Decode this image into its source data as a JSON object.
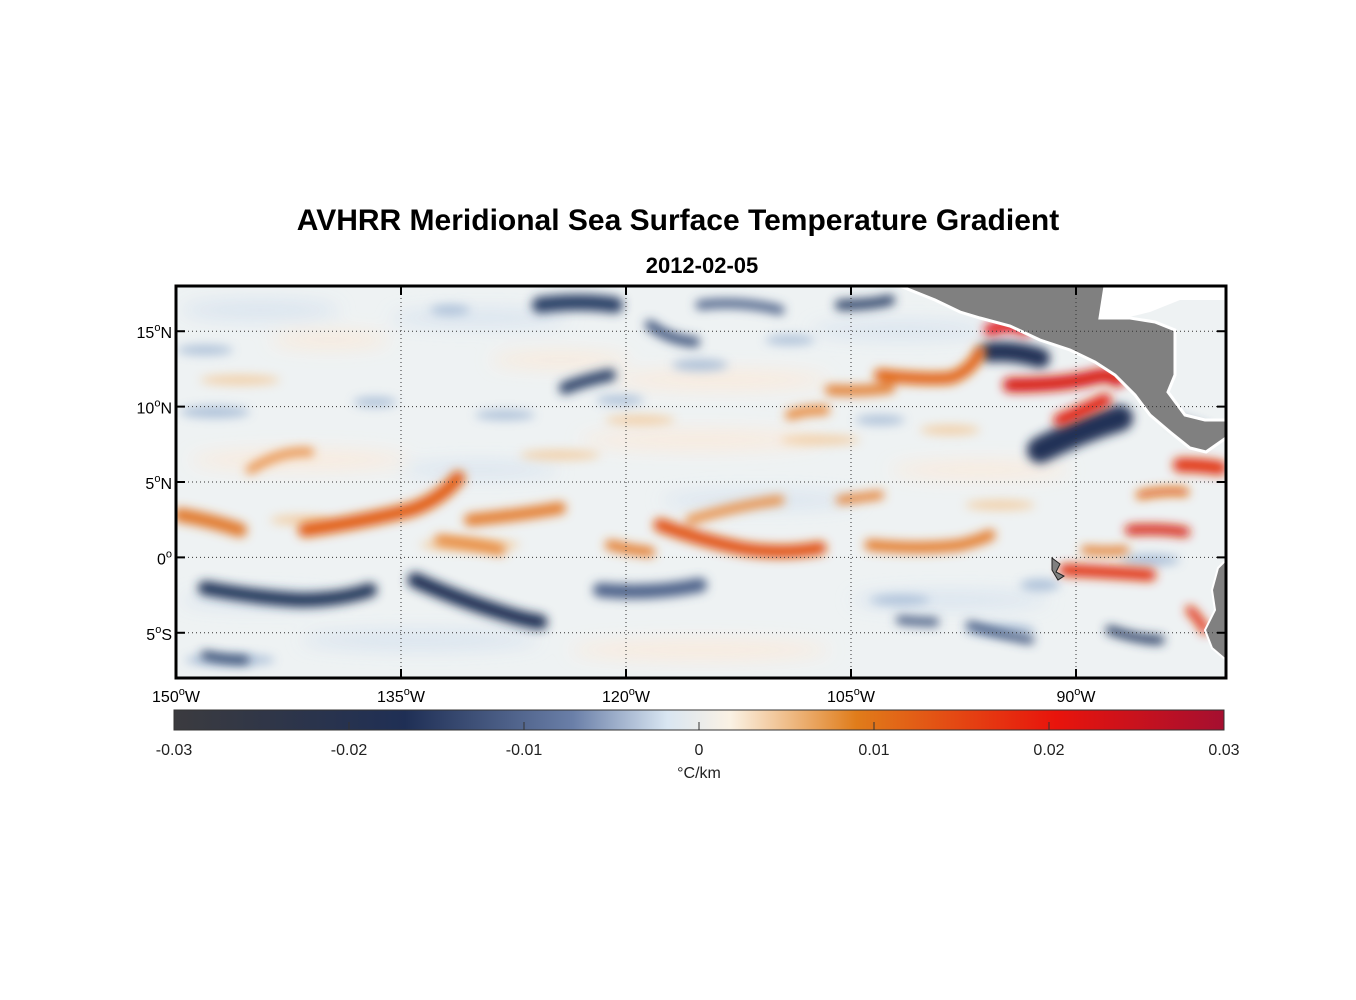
{
  "title": "AVHRR Meridional Sea Surface Temperature Gradient",
  "subtitle": "2012-02-05",
  "map": {
    "lon_range": [
      -150,
      -80
    ],
    "lat_range": [
      -8,
      18
    ],
    "grid": true,
    "lon_ticks": [
      {
        "value": -150,
        "num": "150",
        "hemi": "W"
      },
      {
        "value": -135,
        "num": "135",
        "hemi": "W"
      },
      {
        "value": -120,
        "num": "120",
        "hemi": "W"
      },
      {
        "value": -105,
        "num": "105",
        "hemi": "W"
      },
      {
        "value": -90,
        "num": "90",
        "hemi": "W"
      }
    ],
    "lat_ticks": [
      {
        "value": 15,
        "num": "15",
        "hemi": "N"
      },
      {
        "value": 10,
        "num": "10",
        "hemi": "N"
      },
      {
        "value": 5,
        "num": "5",
        "hemi": "N"
      },
      {
        "value": 0,
        "num": "0",
        "hemi": ""
      },
      {
        "value": -5,
        "num": "5",
        "hemi": "S"
      }
    ],
    "degree_mark": "o",
    "land_color": "#808080"
  },
  "colorbar": {
    "range": [
      -0.03,
      0.03
    ],
    "ticks": [
      "-0.03",
      "-0.02",
      "-0.01",
      "0",
      "0.01",
      "0.02",
      "0.03"
    ],
    "unit": "°C/km",
    "stops": [
      "#3b3b3f",
      "#1f2f55",
      "#6a7fa8",
      "#d9e6f2",
      "#fbf2e4",
      "#e07c1a",
      "#e8140c",
      "#a50f30"
    ]
  },
  "chart_data": {
    "type": "heatmap",
    "variable": "meridional SST gradient",
    "unit": "°C/km",
    "date": "2012-02-05",
    "features": [
      {
        "kind": "positive",
        "lon": [
          -149,
          -146
        ],
        "lat": [
          2.5,
          1.5
        ],
        "value": 0.012
      },
      {
        "kind": "positive",
        "lon": [
          -141,
          -133
        ],
        "lat": [
          1.5,
          3.2
        ],
        "value": 0.016
      },
      {
        "kind": "positive",
        "lon": [
          -143,
          -138
        ],
        "lat": [
          5.2,
          7.4
        ],
        "value": 0.009
      },
      {
        "kind": "positive",
        "lon": [
          -131,
          -125
        ],
        "lat": [
          1.0,
          3.5
        ],
        "value": 0.01
      },
      {
        "kind": "positive",
        "lon": [
          -118,
          -108
        ],
        "lat": [
          2.5,
          0.6
        ],
        "value": 0.016
      },
      {
        "kind": "positive",
        "lon": [
          -103,
          -93
        ],
        "lat": [
          0.6,
          1.2
        ],
        "value": 0.012
      },
      {
        "kind": "positive",
        "lon": [
          -98,
          -91
        ],
        "lat": [
          12.8,
          11.8
        ],
        "value": 0.014
      },
      {
        "kind": "positive",
        "lon": [
          -91,
          -87
        ],
        "lat": [
          11.5,
          12.2
        ],
        "value": 0.022
      },
      {
        "kind": "positive",
        "lon": [
          -89,
          -86
        ],
        "lat": [
          9.5,
          10.2
        ],
        "value": 0.02
      },
      {
        "kind": "positive",
        "lon": [
          -88,
          -83
        ],
        "lat": [
          -0.7,
          -0.7
        ],
        "value": 0.018
      },
      {
        "kind": "negative",
        "lon": [
          -148,
          -140
        ],
        "lat": [
          -2.0,
          -2.8
        ],
        "value": -0.022
      },
      {
        "kind": "negative",
        "lon": [
          -133,
          -126
        ],
        "lat": [
          -1.8,
          -4.0
        ],
        "value": -0.022
      },
      {
        "kind": "negative",
        "lon": [
          -122,
          -112
        ],
        "lat": [
          -2.0,
          -2.4
        ],
        "value": -0.014
      },
      {
        "kind": "negative",
        "lon": [
          -126,
          -119
        ],
        "lat": [
          17.2,
          16.6
        ],
        "value": -0.018
      },
      {
        "kind": "negative",
        "lon": [
          -124,
          -121
        ],
        "lat": [
          11.5,
          12.5
        ],
        "value": -0.016
      },
      {
        "kind": "negative",
        "lon": [
          -92,
          -86
        ],
        "lat": [
          14.0,
          8.0
        ],
        "value": -0.024
      }
    ]
  }
}
